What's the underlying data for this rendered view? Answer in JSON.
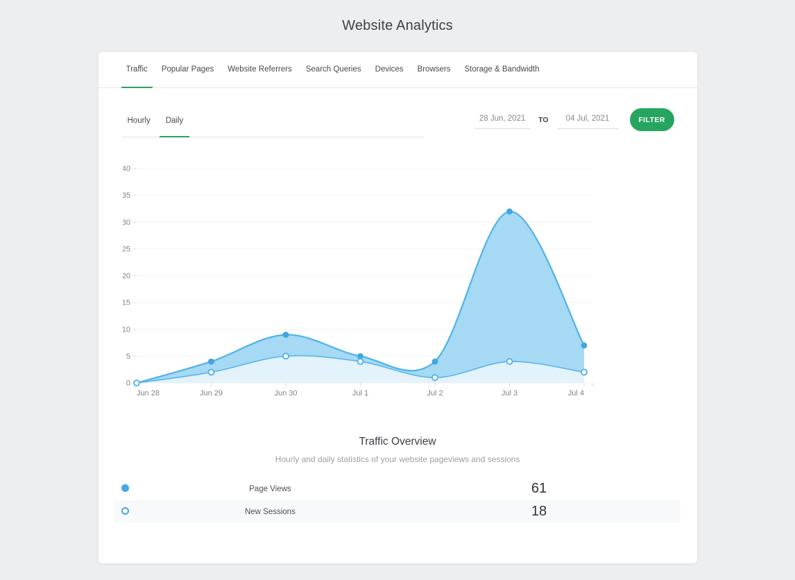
{
  "page_title": "Website Analytics",
  "tabs": [
    {
      "label": "Traffic",
      "active": true
    },
    {
      "label": "Popular Pages",
      "active": false
    },
    {
      "label": "Website Referrers",
      "active": false
    },
    {
      "label": "Search Queries",
      "active": false
    },
    {
      "label": "Devices",
      "active": false
    },
    {
      "label": "Browsers",
      "active": false
    },
    {
      "label": "Storage & Bandwidth",
      "active": false
    }
  ],
  "subtabs": [
    {
      "label": "Hourly",
      "active": false
    },
    {
      "label": "Daily",
      "active": true
    }
  ],
  "filter": {
    "from": "28 Jun, 2021",
    "to_label": "TO",
    "to": "04 Jul, 2021",
    "button": "FILTER",
    "button_color": "#26a560",
    "accent_color": "#2aa263"
  },
  "overview": {
    "title": "Traffic Overview",
    "subtitle": "Hourly and daily statistics of your website pageviews and sessions"
  },
  "summary_rows": [
    {
      "series": "Page Views",
      "marker": "filled-dot-icon",
      "value": "61"
    },
    {
      "series": "New Sessions",
      "marker": "hollow-dot-icon",
      "value": "18"
    }
  ],
  "chart_data": {
    "type": "area",
    "title": "Traffic Overview",
    "x": [
      "Jun 28",
      "Jun 29",
      "Jun 30",
      "Jul 1",
      "Jul 2",
      "Jul 3",
      "Jul 4"
    ],
    "series": [
      {
        "name": "Page Views",
        "values": [
          0,
          4,
          9,
          5,
          4,
          32,
          7
        ],
        "total": 61,
        "line_color": "#4fb2e8",
        "fill_color": "#a6d9f4",
        "marker": "filled",
        "marker_color": "#42a5e0"
      },
      {
        "name": "New Sessions",
        "values": [
          0,
          2,
          5,
          4,
          1,
          4,
          2
        ],
        "total": 18,
        "line_color": "#55b6ea",
        "fill_color": "#e4f2fb",
        "marker": "hollow",
        "marker_color": "#ffffff"
      }
    ],
    "xlabel": "",
    "ylabel": "",
    "ylim": [
      0,
      40
    ],
    "yticks": [
      0,
      5,
      10,
      15,
      20,
      25,
      30,
      35,
      40
    ],
    "grid": true,
    "grid_color": "#f3f4f6",
    "tick_color": "#d9dbdd",
    "legend_position": "bottom-table",
    "curve": "smooth"
  }
}
